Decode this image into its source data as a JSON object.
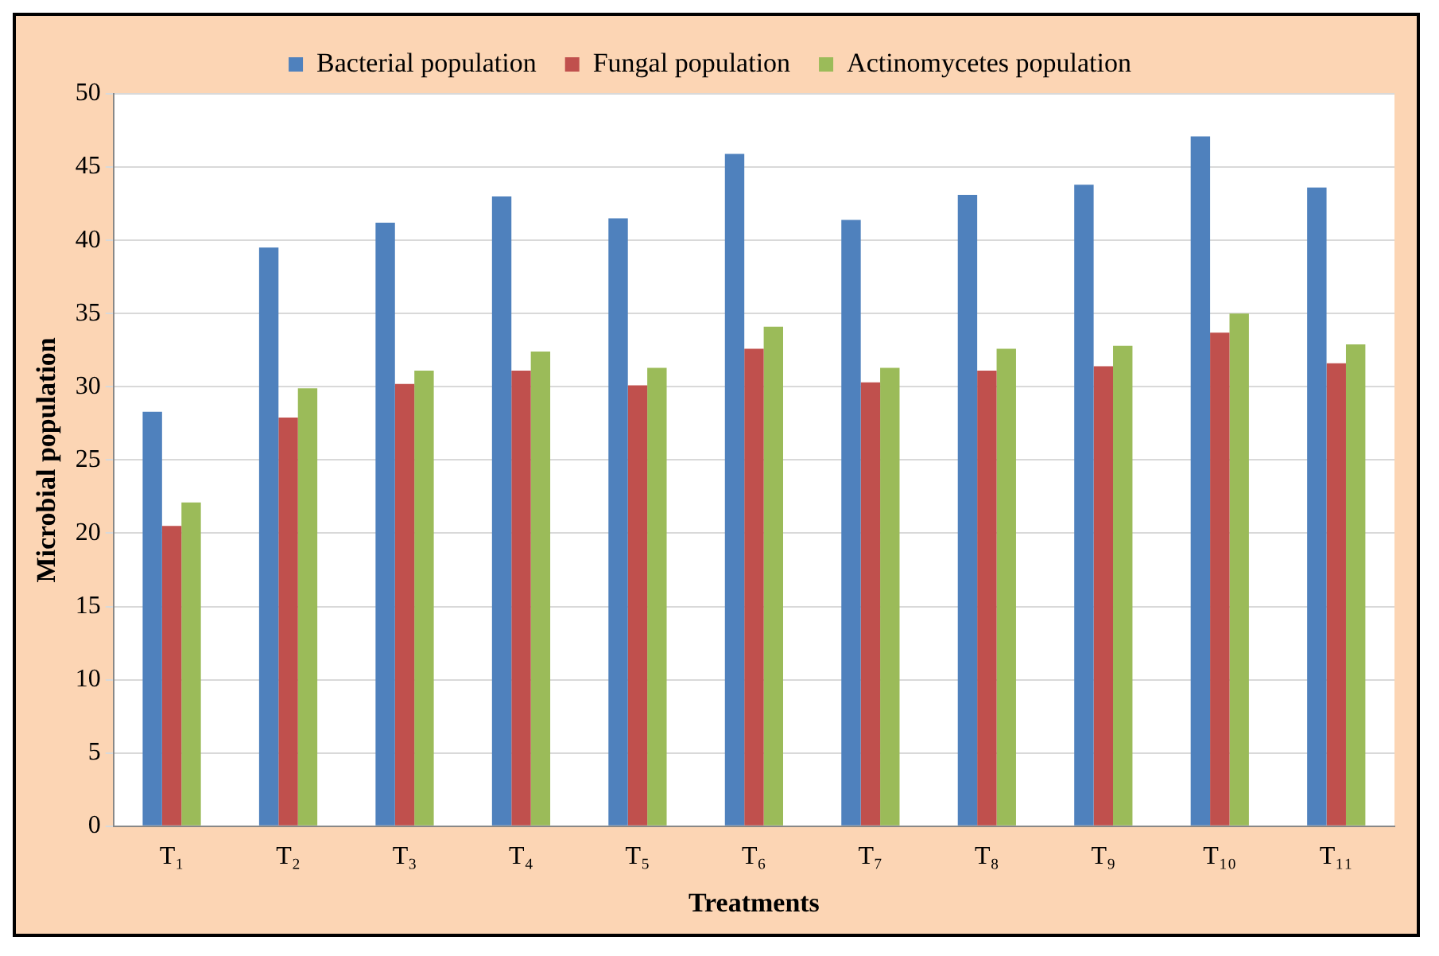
{
  "chart_data": {
    "type": "bar",
    "xlabel": "Treatments",
    "ylabel": "Microbial population",
    "categories": [
      "T₁",
      "T₂",
      "T₃",
      "T₄",
      "T₅",
      "T₆",
      "T₇",
      "T₈",
      "T₉",
      "T₁₀",
      "T₁₁"
    ],
    "series": [
      {
        "name": "Bacterial population",
        "color": "#4f81bd",
        "values": [
          28.3,
          39.5,
          41.2,
          43.0,
          41.5,
          45.9,
          41.4,
          43.1,
          43.8,
          47.1,
          43.6
        ]
      },
      {
        "name": "Fungal population",
        "color": "#c0504d",
        "values": [
          20.5,
          27.9,
          30.2,
          31.1,
          30.1,
          32.6,
          30.3,
          31.1,
          31.4,
          33.7,
          31.6
        ]
      },
      {
        "name": "Actinomycetes population",
        "color": "#9bbb59",
        "values": [
          22.1,
          29.9,
          31.1,
          32.4,
          31.3,
          34.1,
          31.3,
          32.6,
          32.8,
          35.0,
          32.9
        ]
      }
    ],
    "ylim": [
      0,
      50
    ],
    "yticks": [
      0,
      5,
      10,
      15,
      20,
      25,
      30,
      35,
      40,
      45,
      50
    ],
    "grid": "y",
    "legend": "top"
  }
}
